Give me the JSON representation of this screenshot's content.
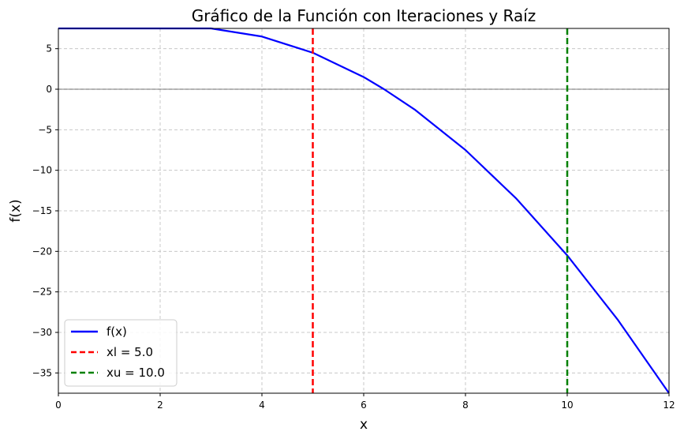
{
  "chart_data": {
    "type": "line",
    "title": "Gráfico de la Función con Iteraciones y Raíz",
    "xlabel": "x",
    "ylabel": "f(x)",
    "xlim": [
      0,
      12
    ],
    "ylim": [
      -37.5,
      7.5
    ],
    "xticks": [
      "0",
      "2",
      "4",
      "6",
      "8",
      "10",
      "12"
    ],
    "yticks": [
      "5",
      "0",
      "−5",
      "−10",
      "−15",
      "−20",
      "−25",
      "−30",
      "−35"
    ],
    "grid": true,
    "legend_position": "lower-left",
    "series": [
      {
        "name": "f(x)",
        "color": "#0000ff",
        "style": "solid",
        "x": [
          0,
          3,
          4,
          5,
          6,
          6.4,
          7,
          8,
          9,
          10,
          11,
          12
        ],
        "y": [
          7.5,
          7.5,
          6.5,
          4.5,
          1.5,
          0,
          -2.5,
          -7.5,
          -13.5,
          -20.5,
          -28.5,
          -37.5
        ]
      },
      {
        "name": "xl = 5.0",
        "color": "#ff0000",
        "style": "dashed",
        "vline": 5.0
      },
      {
        "name": "xu = 10.0",
        "color": "#008000",
        "style": "dashed",
        "vline": 10.0
      }
    ],
    "hline": 0
  }
}
